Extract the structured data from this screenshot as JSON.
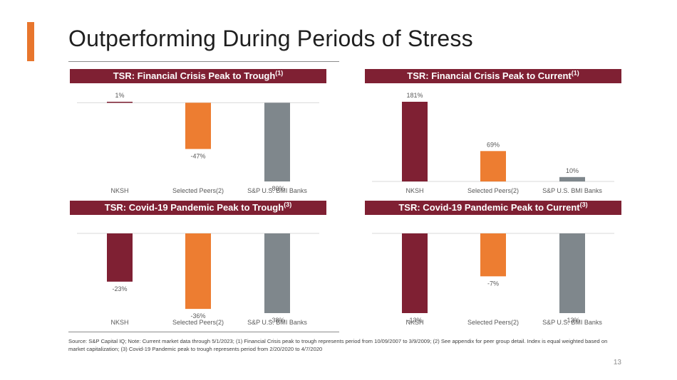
{
  "slide": {
    "title": "Outperforming During Periods of Stress",
    "footnote": "Source: S&P Capital IQ; Note: Current market data through 5/1/2023; (1) Financial Crisis peak to trough represents period from 10/09/2007 to 3/9/2009; (2) See appendix for peer group detail. Index is equal weighted based on market capitalization; (3) Covid-19 Pandemic peak to trough represents period from 2/20/2020 to 4/7/2020",
    "page_number": "13"
  },
  "colors": {
    "accent": "#e8762d",
    "header": "#7f2033",
    "nksh": "#7f2033",
    "peers": "#ed7d31",
    "index": "#7f878c",
    "axis": "#d9d9d9"
  },
  "chart_data": [
    {
      "type": "bar",
      "title": "TSR: Financial Crisis Peak to Trough",
      "title_note": "(1)",
      "categories": [
        "NKSH",
        "Selected Peers(2)",
        "S&P U.S. BMI Banks"
      ],
      "values": [
        1,
        -47,
        -80
      ],
      "labels": [
        "1%",
        "-47%",
        "-80%"
      ],
      "ylim": [
        -80,
        1
      ]
    },
    {
      "type": "bar",
      "title": "TSR: Financial Crisis Peak to Current",
      "title_note": "(1)",
      "categories": [
        "NKSH",
        "Selected Peers(2)",
        "S&P U.S. BMI Banks"
      ],
      "values": [
        181,
        69,
        10
      ],
      "labels": [
        "181%",
        "69%",
        "10%"
      ],
      "ylim": [
        0,
        181
      ]
    },
    {
      "type": "bar",
      "title": "TSR: Covid-19 Pandemic Peak to Trough",
      "title_note": "(3)",
      "categories": [
        "NKSH",
        "Selected Peers(2)",
        "S&P U.S. BMI Banks"
      ],
      "values": [
        -23,
        -36,
        -38
      ],
      "labels": [
        "-23%",
        "-36%",
        "-38%"
      ],
      "ylim": [
        -38,
        0
      ]
    },
    {
      "type": "bar",
      "title": "TSR: Covid-19 Pandemic Peak to Current",
      "title_note": "(3)",
      "categories": [
        "NKSH",
        "Selected Peers(2)",
        "S&P U.S. BMI Banks"
      ],
      "values": [
        -13,
        -7,
        -13
      ],
      "labels": [
        "-13%",
        "-7%",
        "-13%"
      ],
      "ylim": [
        -13,
        0
      ]
    }
  ]
}
